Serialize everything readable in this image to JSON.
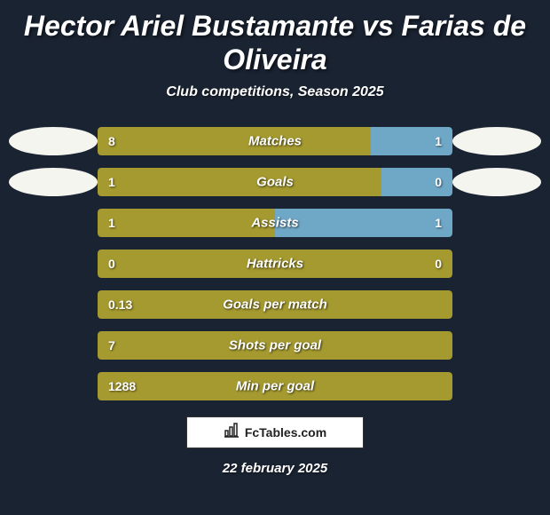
{
  "title": "Hector Ariel Bustamante vs Farias de Oliveira",
  "subtitle": "Club competitions, Season 2025",
  "footer_brand": "FcTables.com",
  "footer_date": "22 february 2025",
  "colors": {
    "background": "#1a2332",
    "left_bar": "#a59a2f",
    "right_bar": "#6fa8c7",
    "full_bar": "#a59a2f",
    "avatar_bg": "#f5f5f0",
    "text": "#ffffff"
  },
  "rows": [
    {
      "label": "Matches",
      "left_val": "8",
      "right_val": "1",
      "left_pct": 77,
      "show_avatars": true,
      "right_color": "#6fa8c7"
    },
    {
      "label": "Goals",
      "left_val": "1",
      "right_val": "0",
      "left_pct": 80,
      "show_avatars": true,
      "right_color": "#6fa8c7"
    },
    {
      "label": "Assists",
      "left_val": "1",
      "right_val": "1",
      "left_pct": 50,
      "show_avatars": false,
      "right_color": "#6fa8c7"
    },
    {
      "label": "Hattricks",
      "left_val": "0",
      "right_val": "0",
      "left_pct": 50,
      "show_avatars": false,
      "right_color": "#a59a2f"
    },
    {
      "label": "Goals per match",
      "left_val": "0.13",
      "right_val": "",
      "left_pct": 100,
      "show_avatars": false,
      "right_color": "#a59a2f"
    },
    {
      "label": "Shots per goal",
      "left_val": "7",
      "right_val": "",
      "left_pct": 100,
      "show_avatars": false,
      "right_color": "#a59a2f"
    },
    {
      "label": "Min per goal",
      "left_val": "1288",
      "right_val": "",
      "left_pct": 100,
      "show_avatars": false,
      "right_color": "#a59a2f"
    }
  ]
}
